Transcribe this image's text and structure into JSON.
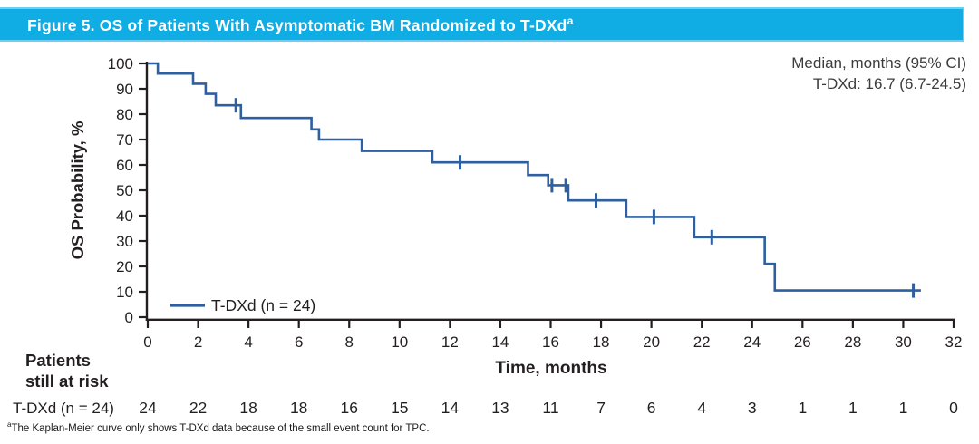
{
  "title": {
    "text": "Figure 5. OS of Patients With Asymptomatic BM Randomized to T-DXd",
    "superscript": "a"
  },
  "annotation": {
    "line1": "Median, months (95% CI)",
    "line2": "T-DXd: 16.7 (6.7-24.5)"
  },
  "legend": {
    "label": "T-DXd (n = 24)"
  },
  "axes": {
    "ylabel": "OS Probability, %",
    "xlabel": "Time, months"
  },
  "risk_table": {
    "header_line1": "Patients",
    "header_line2": "still at risk",
    "row_label": "T-DXd (n = 24)",
    "times": [
      0,
      2,
      4,
      6,
      8,
      10,
      12,
      14,
      16,
      18,
      20,
      22,
      24,
      26,
      28,
      30,
      32
    ],
    "values": [
      24,
      22,
      18,
      18,
      16,
      15,
      14,
      13,
      11,
      7,
      6,
      4,
      3,
      1,
      1,
      1,
      0
    ]
  },
  "footnote": {
    "superscript": "a",
    "text": "The Kaplan-Meier curve only shows T-DXd data because of the small event count for TPC."
  },
  "colors": {
    "title_bar": "#0fade4",
    "title_bar_edge": "#6fcff2",
    "curve": "#2e5fa1",
    "axis": "#231f20"
  },
  "chart_data": {
    "type": "line",
    "subtype": "kaplan-meier-step",
    "title": "OS of Patients With Asymptomatic BM Randomized to T-DXd",
    "xlabel": "Time, months",
    "ylabel": "OS Probability, %",
    "xlim": [
      0,
      32
    ],
    "ylim": [
      0,
      100
    ],
    "xticks": [
      0,
      2,
      4,
      6,
      8,
      10,
      12,
      14,
      16,
      18,
      20,
      22,
      24,
      26,
      28,
      30,
      32
    ],
    "yticks": [
      0,
      10,
      20,
      30,
      40,
      50,
      60,
      70,
      80,
      90,
      100
    ],
    "grid": false,
    "legend_position": "lower-left-inside",
    "median_months": 16.7,
    "ci_95": "6.7-24.5",
    "series": [
      {
        "name": "T-DXd (n = 24)",
        "color": "#2e5fa1",
        "step_levels": [
          [
            0,
            100
          ],
          [
            0.4,
            96
          ],
          [
            1.8,
            92
          ],
          [
            2.3,
            88
          ],
          [
            2.7,
            83.5
          ],
          [
            3.7,
            78.5
          ],
          [
            6.5,
            74
          ],
          [
            6.8,
            70
          ],
          [
            8.5,
            65.5
          ],
          [
            11.3,
            61
          ],
          [
            15.1,
            56
          ],
          [
            15.9,
            52
          ],
          [
            16.7,
            46
          ],
          [
            19.0,
            39.5
          ],
          [
            21.7,
            31.5
          ],
          [
            24.5,
            21
          ],
          [
            24.9,
            10.5
          ]
        ],
        "end_time": 30.7,
        "censor_marks": [
          [
            3.5,
            83.5
          ],
          [
            12.4,
            61
          ],
          [
            16.05,
            52
          ],
          [
            16.6,
            52
          ],
          [
            17.8,
            46
          ],
          [
            20.1,
            39.5
          ],
          [
            22.4,
            31.5
          ],
          [
            30.4,
            10.5
          ]
        ]
      }
    ]
  }
}
